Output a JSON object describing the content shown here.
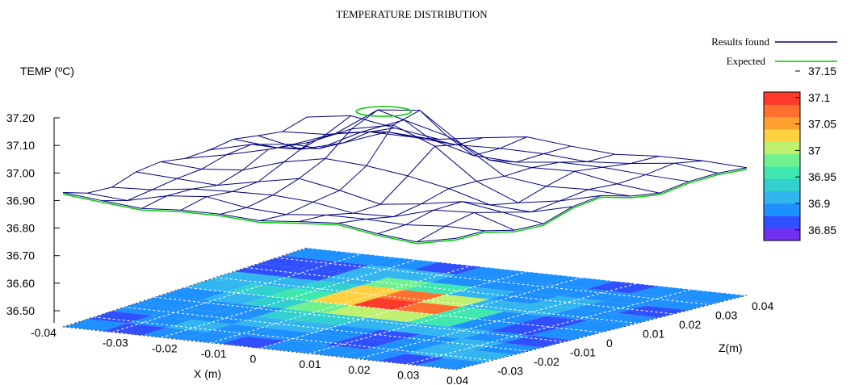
{
  "chart_data": {
    "type": "surface3d",
    "title": "TEMPERATURE DISTRIBUTION",
    "zlabel": "TEMP (ºC)",
    "xlabel": "X (m)",
    "ylabel": "Z(m)",
    "z_ticks": [
      "37.20",
      "37.10",
      "37.00",
      "36.90",
      "36.80",
      "36.70",
      "36.60",
      "36.50"
    ],
    "x_ticks": [
      "-0.04",
      "-0.03",
      "-0.02",
      "-0.01",
      "0",
      "0.01",
      "0.02",
      "0.03",
      "0.04"
    ],
    "y_ticks": [
      "-0.03",
      "-0.02",
      "-0.01",
      "0",
      "0.01",
      "0.02",
      "0.03",
      "0.04"
    ],
    "xlim": [
      -0.04,
      0.04
    ],
    "ylim": [
      -0.04,
      0.04
    ],
    "zlim": [
      36.44,
      37.2
    ],
    "series": [
      {
        "name": "Results found",
        "color": "#000080"
      },
      {
        "name": "Expected",
        "color": "#00cc00"
      }
    ],
    "peak": {
      "x": -0.005,
      "y": 0.005,
      "value": 37.15
    },
    "baseline": 36.91,
    "grid": "11x11 mesh, values estimated from figure",
    "colorbar": {
      "ticks": [
        "37.15",
        "37.1",
        "37.05",
        "37",
        "36.95",
        "36.9",
        "36.85"
      ],
      "range": [
        36.85,
        37.15
      ],
      "colors": [
        "#7030f0",
        "#3050ff",
        "#1e90ff",
        "#33b5f0",
        "#33d0d0",
        "#40e8b0",
        "#70f090",
        "#c0f070",
        "#ffd040",
        "#ffa030",
        "#ff7030",
        "#ff3a2a"
      ]
    }
  }
}
